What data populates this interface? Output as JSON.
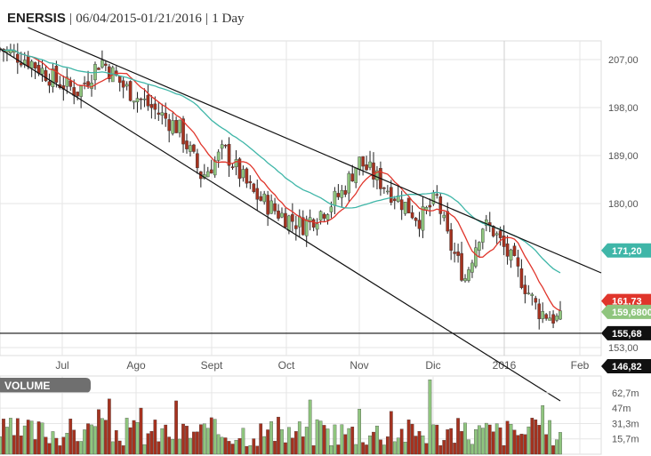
{
  "header": {
    "symbol": "ENERSIS",
    "range": "06/04/2015-01/21/2016",
    "interval": "1 Day",
    "sep": "|"
  },
  "colors": {
    "up": "#8fc57e",
    "down": "#a5321f",
    "ma_fast": "#e0352b",
    "ma_slow": "#3fb6a8",
    "grid": "#e6e6e6",
    "channel": "#111111",
    "volume_label_bg": "#6f6f6f"
  },
  "chart_data": {
    "type": "candlestick",
    "x_labels": [
      "Jul",
      "Ago",
      "Sept",
      "Oct",
      "Nov",
      "Dic",
      "2016",
      "Feb"
    ],
    "y_ticks": [
      "207,00",
      "198,00",
      "189,00",
      "180,00",
      "153,00"
    ],
    "ylim": [
      151.5,
      210.5
    ],
    "price_tags": [
      {
        "label": "171,20",
        "value": 171.2,
        "color": "#3fb6a8",
        "series": "ma_slow"
      },
      {
        "label": "161,73",
        "value": 161.73,
        "color": "#e0352b",
        "series": "ma_fast"
      },
      {
        "label": "159,6800",
        "value": 159.68,
        "color": "#8fc57e",
        "series": "last"
      },
      {
        "label": "155,68",
        "value": 155.68,
        "color": "#111111",
        "series": "support"
      },
      {
        "label": "146,82",
        "value": 146.82,
        "color": "#111111",
        "series": "low"
      }
    ],
    "support_level": 155.68,
    "channel_upper": [
      [
        0.05,
        213.0
      ],
      [
        1.0,
        167.0
      ]
    ],
    "channel_lower": [
      [
        0.0,
        209.0
      ],
      [
        1.0,
        143.0
      ]
    ],
    "close_path": [
      [
        0.0,
        209
      ],
      [
        0.05,
        207
      ],
      [
        0.1,
        203
      ],
      [
        0.14,
        201
      ],
      [
        0.18,
        207
      ],
      [
        0.22,
        202
      ],
      [
        0.27,
        198
      ],
      [
        0.32,
        194
      ],
      [
        0.36,
        185
      ],
      [
        0.4,
        190
      ],
      [
        0.45,
        182
      ],
      [
        0.5,
        178
      ],
      [
        0.54,
        176
      ],
      [
        0.58,
        179
      ],
      [
        0.61,
        182
      ],
      [
        0.64,
        188
      ],
      [
        0.68,
        184
      ],
      [
        0.71,
        181
      ],
      [
        0.75,
        177
      ],
      [
        0.78,
        181
      ],
      [
        0.8,
        173
      ],
      [
        0.83,
        166
      ],
      [
        0.86,
        176
      ],
      [
        0.88,
        175
      ],
      [
        0.92,
        168
      ],
      [
        0.96,
        160
      ],
      [
        1.0,
        158
      ]
    ],
    "candle_count": 160,
    "volume": {
      "label": "VOLUME",
      "y_ticks": [
        "62,7m",
        "47m",
        "31,3m",
        "15,7m"
      ],
      "ylim": [
        0,
        78
      ],
      "count": 160
    }
  }
}
